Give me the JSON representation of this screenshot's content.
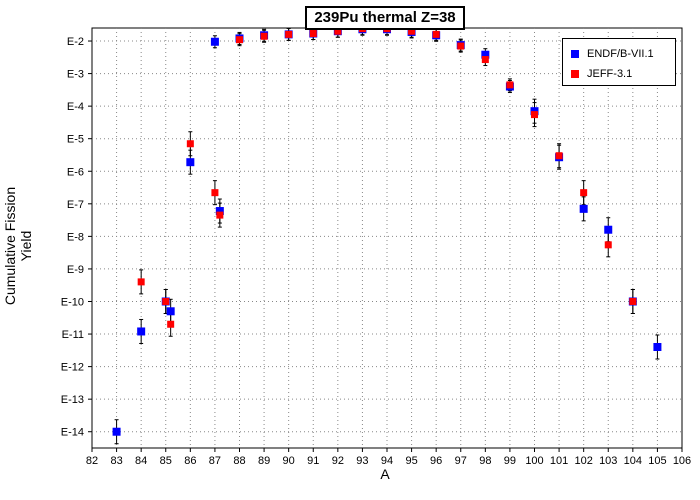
{
  "chart_data": {
    "type": "scatter",
    "title": "239Pu thermal Z=38",
    "xlabel": "A",
    "ylabel": "Cumulative Fission Yield",
    "xlim": [
      82,
      106
    ],
    "ylim_exponent": [
      -14.5,
      -1.6
    ],
    "y_scale": "log",
    "grid": true,
    "legend_position": "top-right",
    "x_ticks": [
      "82",
      "83",
      "84",
      "85",
      "86",
      "87",
      "88",
      "89",
      "90",
      "91",
      "92",
      "93",
      "94",
      "95",
      "96",
      "97",
      "98",
      "99",
      "100",
      "101",
      "102",
      "103",
      "104",
      "105",
      "106"
    ],
    "y_ticks": [
      "E-2",
      "E-3",
      "E-4",
      "E-5",
      "E-6",
      "E-7",
      "E-8",
      "E-9",
      "E-10",
      "E-11",
      "E-12",
      "E-13",
      "E-14"
    ],
    "series": [
      {
        "name": "ENDF/B-VII.1",
        "color": "#0000ff",
        "marker": "square",
        "points": [
          {
            "x": 83,
            "y": 1e-14
          },
          {
            "x": 84,
            "y": 1.2e-11
          },
          {
            "x": 85,
            "y": 1e-10
          },
          {
            "x": 85.2,
            "y": 5e-11
          },
          {
            "x": 86,
            "y": 1.9e-06
          },
          {
            "x": 87,
            "y": 0.0095
          },
          {
            "x": 87.2,
            "y": 6e-08
          },
          {
            "x": 88,
            "y": 0.012
          },
          {
            "x": 89,
            "y": 0.015
          },
          {
            "x": 90,
            "y": 0.016
          },
          {
            "x": 91,
            "y": 0.017
          },
          {
            "x": 92,
            "y": 0.02
          },
          {
            "x": 93,
            "y": 0.023
          },
          {
            "x": 94,
            "y": 0.023
          },
          {
            "x": 95,
            "y": 0.019
          },
          {
            "x": 96,
            "y": 0.015
          },
          {
            "x": 97,
            "y": 0.0075
          },
          {
            "x": 98,
            "y": 0.0038
          },
          {
            "x": 99,
            "y": 0.0004
          },
          {
            "x": 100,
            "y": 7e-05
          },
          {
            "x": 101,
            "y": 2.7e-06
          },
          {
            "x": 102,
            "y": 7e-08
          },
          {
            "x": 103,
            "y": 1.6e-08
          },
          {
            "x": 104,
            "y": 1e-10
          },
          {
            "x": 105,
            "y": 4e-12
          }
        ]
      },
      {
        "name": "JEFF-3.1",
        "color": "#ff0000",
        "marker": "square",
        "points": [
          {
            "x": 84,
            "y": 4e-10
          },
          {
            "x": 85,
            "y": 1e-10
          },
          {
            "x": 85.2,
            "y": 2e-11
          },
          {
            "x": 86,
            "y": 7e-06
          },
          {
            "x": 87,
            "y": 2.2e-07
          },
          {
            "x": 87.2,
            "y": 4.5e-08
          },
          {
            "x": 88,
            "y": 0.011
          },
          {
            "x": 89,
            "y": 0.014
          },
          {
            "x": 90,
            "y": 0.016
          },
          {
            "x": 91,
            "y": 0.017
          },
          {
            "x": 92,
            "y": 0.02
          },
          {
            "x": 93,
            "y": 0.024
          },
          {
            "x": 94,
            "y": 0.024
          },
          {
            "x": 95,
            "y": 0.02
          },
          {
            "x": 96,
            "y": 0.016
          },
          {
            "x": 97,
            "y": 0.007
          },
          {
            "x": 98,
            "y": 0.0027
          },
          {
            "x": 99,
            "y": 0.00045
          },
          {
            "x": 100,
            "y": 5.5e-05
          },
          {
            "x": 101,
            "y": 3e-06
          },
          {
            "x": 102,
            "y": 2.2e-07
          },
          {
            "x": 103,
            "y": 5.5e-09
          },
          {
            "x": 104,
            "y": 1e-10
          }
        ]
      }
    ]
  }
}
